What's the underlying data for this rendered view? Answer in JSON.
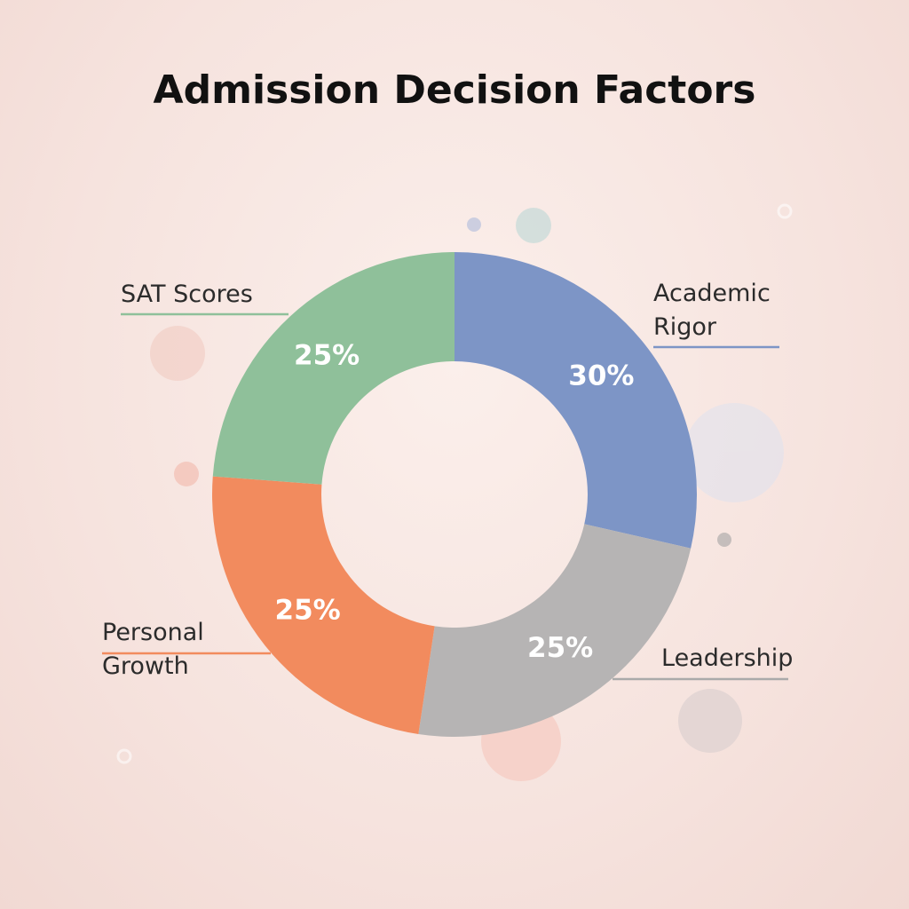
{
  "chart_data": {
    "type": "donut",
    "title": "Admission Decision Factors",
    "categories": [
      "Academic Rigor",
      "Leadership",
      "Personal Growth",
      "SAT Scores"
    ],
    "values": [
      30,
      25,
      25,
      25
    ],
    "value_labels": [
      "30%",
      "25%",
      "25%",
      "25%"
    ],
    "colors": [
      "#7d95c6",
      "#b6b4b4",
      "#f28b5e",
      "#8fc09a"
    ]
  }
}
